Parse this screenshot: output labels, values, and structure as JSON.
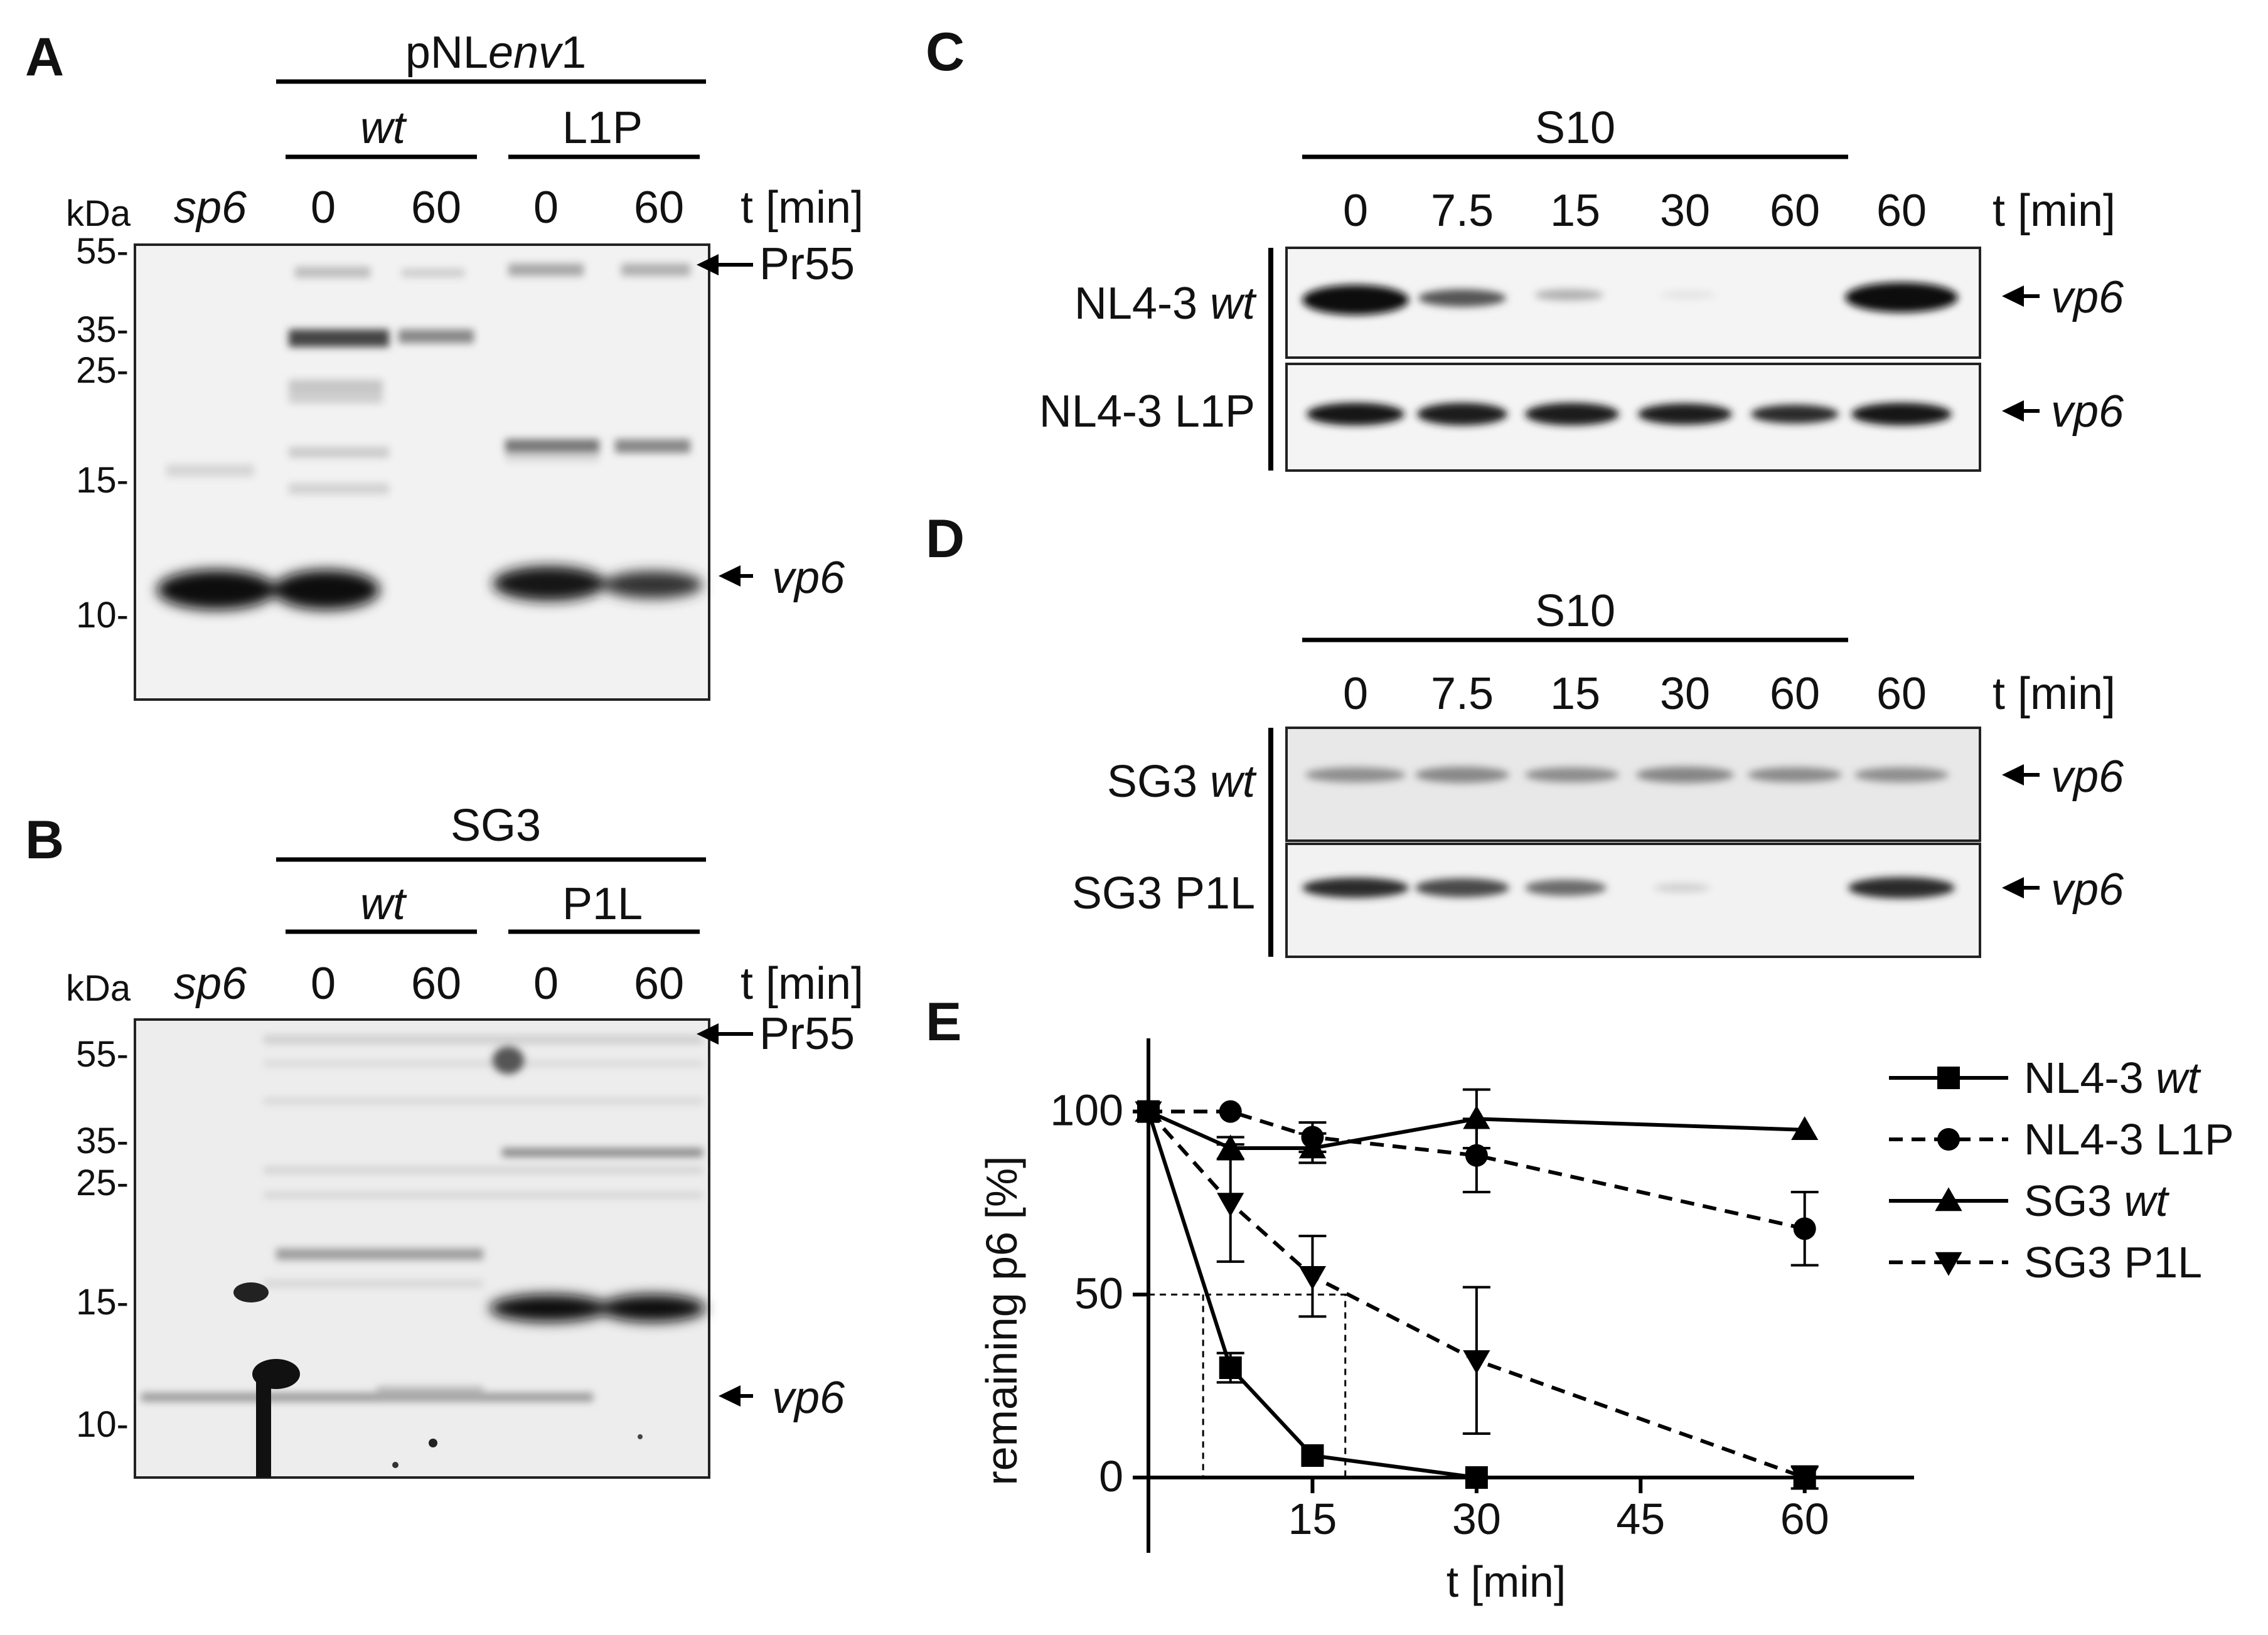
{
  "panels": {
    "A": {
      "label": "A",
      "construct": "pNLenv1",
      "construct_parts": [
        "pNL",
        "env",
        "1"
      ],
      "group1": "wt",
      "group2": "L1P",
      "kda_label": "kDa",
      "sp6": "sp6",
      "lanes": [
        "0",
        "60",
        "0",
        "60"
      ],
      "time_label": "t [min]",
      "markers": [
        "55-",
        "35-",
        "25-",
        "15-",
        "10-"
      ],
      "arrow_pr55": "Pr55",
      "arrow_vp6": "vp6"
    },
    "B": {
      "label": "B",
      "construct": "SG3",
      "group1": "wt",
      "group2": "P1L",
      "kda_label": "kDa",
      "sp6": "sp6",
      "lanes": [
        "0",
        "60",
        "0",
        "60"
      ],
      "time_label": "t [min]",
      "markers": [
        "55-",
        "35-",
        "25-",
        "15-",
        "10-"
      ],
      "arrow_pr55": "Pr55",
      "arrow_vp6": "vp6"
    },
    "C": {
      "label": "C",
      "fraction": "S10",
      "lanes": [
        "0",
        "7.5",
        "15",
        "30",
        "60",
        "60"
      ],
      "time_label": "t [min]",
      "row1_prefix": "NL4-3 ",
      "row1_italic": "wt",
      "row2": "NL4-3 L1P",
      "arrow_vp6": "vp6"
    },
    "D": {
      "label": "D",
      "fraction": "S10",
      "lanes": [
        "0",
        "7.5",
        "15",
        "30",
        "60",
        "60"
      ],
      "time_label": "t [min]",
      "row1_prefix": "SG3 ",
      "row1_italic": "wt",
      "row2": "SG3 P1L",
      "arrow_vp6": "vp6"
    },
    "E": {
      "label": "E"
    }
  },
  "chart_data": {
    "type": "line",
    "xlabel": "t [min]",
    "ylabel": "remaining p6 [%]",
    "xlim": [
      0,
      70
    ],
    "ylim": [
      0,
      120
    ],
    "xticks": [
      15,
      30,
      45,
      60
    ],
    "yticks": [
      0,
      50,
      100
    ],
    "legend_position": "right",
    "series": [
      {
        "name": "NL4-3 wt",
        "name_prefix": "NL4-3 ",
        "name_italic": "wt",
        "marker": "square",
        "dash": "solid",
        "x": [
          0,
          7.5,
          15,
          30,
          60
        ],
        "y": [
          100,
          30,
          6,
          0,
          0
        ],
        "err": [
          0,
          4,
          0,
          0,
          0
        ]
      },
      {
        "name": "NL4-3 L1P",
        "name_prefix": "NL4-3 L1P",
        "name_italic": "",
        "marker": "circle",
        "dash": "dashed",
        "x": [
          0,
          7.5,
          15,
          30,
          60
        ],
        "y": [
          100,
          100,
          93,
          88,
          68
        ],
        "err": [
          0,
          0,
          4,
          10,
          10
        ]
      },
      {
        "name": "SG3 wt",
        "name_prefix": "SG3 ",
        "name_italic": "wt",
        "marker": "triangle-up",
        "dash": "solid",
        "x": [
          0,
          7.5,
          15,
          30,
          60
        ],
        "y": [
          100,
          90,
          90,
          98,
          95
        ],
        "err": [
          0,
          3,
          4,
          8,
          0
        ]
      },
      {
        "name": "SG3 P1L",
        "name_prefix": "SG3 P1L",
        "name_italic": "",
        "marker": "triangle-down",
        "dash": "dashed",
        "x": [
          0,
          7.5,
          15,
          30,
          60
        ],
        "y": [
          100,
          75,
          55,
          32,
          0
        ],
        "err": [
          0,
          16,
          11,
          20,
          3
        ]
      }
    ],
    "reference_box": {
      "y": 50,
      "x_from": 5,
      "x_to": 18
    }
  }
}
